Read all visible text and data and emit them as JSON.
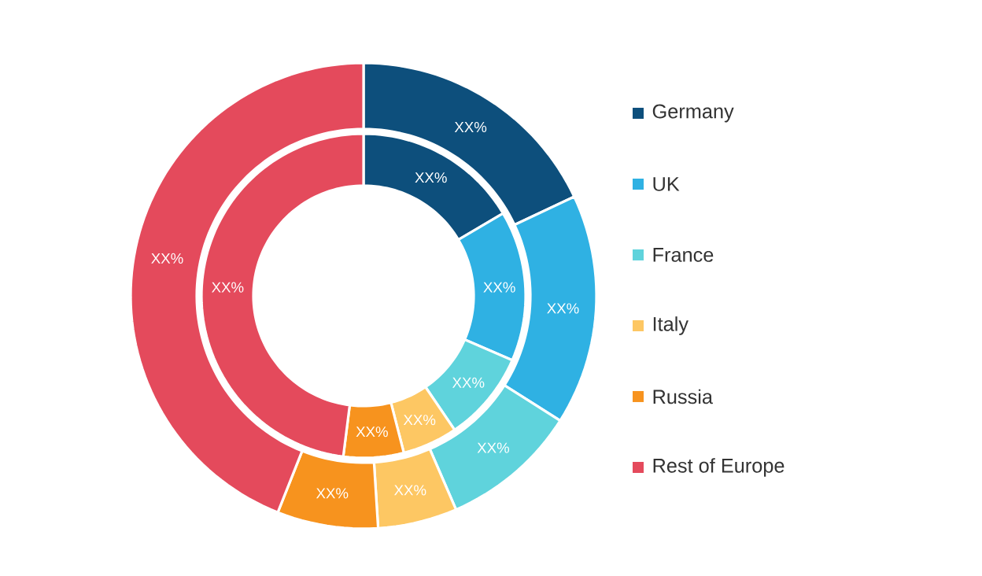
{
  "chart_data": {
    "type": "donut",
    "categories": [
      "Germany",
      "UK",
      "France",
      "Italy",
      "Russia",
      "Rest of Europe"
    ],
    "colors": [
      "#0d4f7c",
      "#2fb1e3",
      "#5fd3dc",
      "#fdc763",
      "#f7931e",
      "#e44a5c"
    ],
    "series": [
      {
        "values": [
          16.5,
          15,
          9,
          5.5,
          6,
          48
        ],
        "value_labels": [
          "XX%",
          "XX%",
          "XX%",
          "XX%",
          "XX%",
          "XX%"
        ]
      },
      {
        "values": [
          18,
          16,
          9.5,
          5.5,
          7,
          44
        ],
        "value_labels": [
          "XX%",
          "XX%",
          "XX%",
          "XX%",
          "XX%",
          "XX%"
        ]
      }
    ],
    "legend": "right"
  }
}
